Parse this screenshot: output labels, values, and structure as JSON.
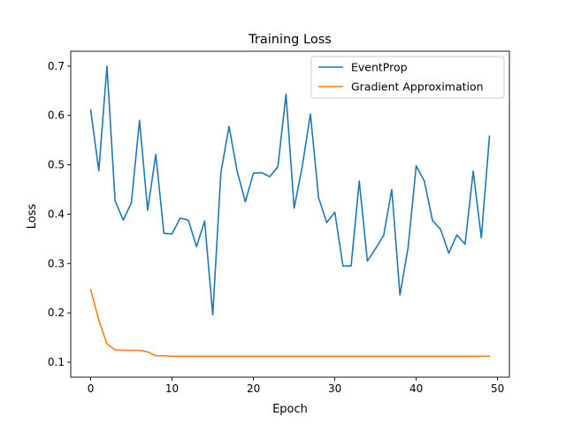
{
  "chart_data": {
    "type": "line",
    "title": "Training Loss",
    "xlabel": "Epoch",
    "ylabel": "Loss",
    "xlim": [
      -2.45,
      51.45
    ],
    "ylim": [
      0.0696,
      0.7302
    ],
    "xticks": [
      0,
      10,
      20,
      30,
      40,
      50
    ],
    "yticks": [
      0.1,
      0.2,
      0.3,
      0.4,
      0.5,
      0.6,
      0.7
    ],
    "ytick_labels": [
      "0.1",
      "0.2",
      "0.3",
      "0.4",
      "0.5",
      "0.6",
      "0.7"
    ],
    "grid": false,
    "legend_position": "top-right",
    "x": [
      0,
      1,
      2,
      3,
      4,
      5,
      6,
      7,
      8,
      9,
      10,
      11,
      12,
      13,
      14,
      15,
      16,
      17,
      18,
      19,
      20,
      21,
      22,
      23,
      24,
      25,
      26,
      27,
      28,
      29,
      30,
      31,
      32,
      33,
      34,
      35,
      36,
      37,
      38,
      39,
      40,
      41,
      42,
      43,
      44,
      45,
      46,
      47,
      48,
      49
    ],
    "series": [
      {
        "name": "EventProp",
        "color": "#1f77b4",
        "values": [
          0.611,
          0.488,
          0.7,
          0.427,
          0.388,
          0.423,
          0.59,
          0.408,
          0.521,
          0.361,
          0.36,
          0.392,
          0.388,
          0.334,
          0.386,
          0.196,
          0.484,
          0.578,
          0.487,
          0.425,
          0.483,
          0.484,
          0.476,
          0.496,
          0.643,
          0.412,
          0.497,
          0.603,
          0.434,
          0.383,
          0.404,
          0.295,
          0.295,
          0.467,
          0.305,
          0.33,
          0.357,
          0.45,
          0.236,
          0.332,
          0.498,
          0.467,
          0.387,
          0.369,
          0.321,
          0.358,
          0.339,
          0.487,
          0.352,
          0.558
        ]
      },
      {
        "name": "Gradient Approximation",
        "color": "#ff7f0e",
        "values": [
          0.247,
          0.185,
          0.137,
          0.125,
          0.124,
          0.124,
          0.124,
          0.121,
          0.113,
          0.113,
          0.112,
          0.112,
          0.112,
          0.112,
          0.112,
          0.112,
          0.112,
          0.112,
          0.112,
          0.112,
          0.112,
          0.112,
          0.112,
          0.112,
          0.112,
          0.112,
          0.112,
          0.112,
          0.112,
          0.112,
          0.112,
          0.112,
          0.112,
          0.112,
          0.112,
          0.112,
          0.112,
          0.112,
          0.112,
          0.112,
          0.112,
          0.112,
          0.112,
          0.112,
          0.112,
          0.112,
          0.112,
          0.112,
          0.112,
          0.112
        ]
      }
    ]
  }
}
